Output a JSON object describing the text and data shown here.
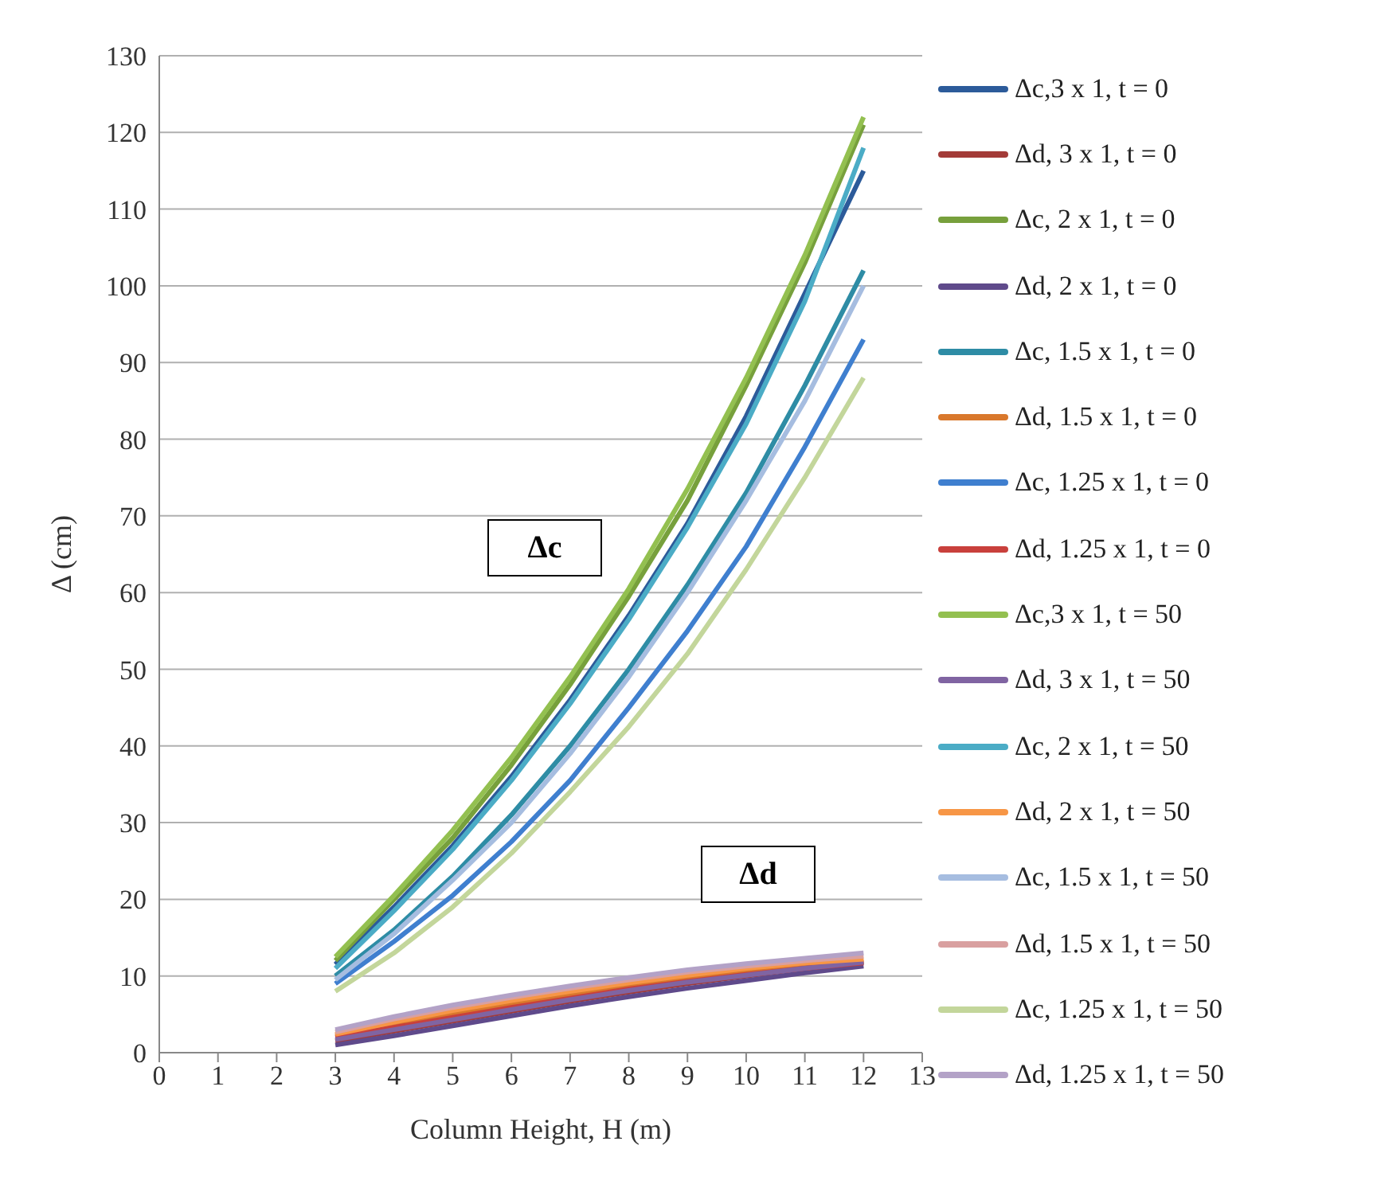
{
  "chart_data": {
    "type": "line",
    "xlabel": "Column Height, H (m)",
    "ylabel": "Δ (cm)",
    "x": [
      3,
      4,
      5,
      6,
      7,
      8,
      9,
      10,
      11,
      12
    ],
    "xlim": [
      0,
      13
    ],
    "xticks": [
      0,
      1,
      2,
      3,
      4,
      5,
      6,
      7,
      8,
      9,
      10,
      11,
      12,
      13
    ],
    "ylim": [
      0,
      130
    ],
    "yticks": [
      0,
      10,
      20,
      30,
      40,
      50,
      60,
      70,
      80,
      90,
      100,
      110,
      120,
      130
    ],
    "grid": "y",
    "legend": "right",
    "marker": "none",
    "line_style": "solid",
    "annotations": [
      "Δc",
      "Δd"
    ],
    "series": [
      {
        "name": "Δc,3 x 1, t = 0",
        "color": "#2c5b9a",
        "values": [
          11.5,
          19,
          27,
          36,
          46,
          57,
          69,
          83,
          99,
          115
        ]
      },
      {
        "name": "Δd, 3 x 1, t = 0",
        "color": "#a33b38",
        "values": [
          1.5,
          2.8,
          4.1,
          5.4,
          6.7,
          7.9,
          9,
          10,
          11,
          11.8
        ]
      },
      {
        "name": "Δc, 2 x 1, t = 0",
        "color": "#77a03c",
        "values": [
          12,
          20,
          28,
          37.5,
          48,
          59.5,
          72,
          87,
          103,
          121
        ]
      },
      {
        "name": "Δd, 2 x 1, t = 0",
        "color": "#5f4a8b",
        "values": [
          1,
          2.2,
          3.5,
          4.8,
          6.1,
          7.3,
          8.4,
          9.4,
          10.4,
          11.3
        ]
      },
      {
        "name": "Δc, 1.5 x 1, t = 0",
        "color": "#2e8ca5",
        "values": [
          10,
          16,
          23,
          31,
          40,
          50,
          61,
          73,
          87,
          102
        ]
      },
      {
        "name": "Δd, 1.5 x 1, t = 0",
        "color": "#d9782c",
        "values": [
          2.2,
          3.7,
          5.1,
          6.4,
          7.6,
          8.7,
          9.7,
          10.6,
          11.4,
          12
        ]
      },
      {
        "name": "Δc, 1.25 x 1, t = 0",
        "color": "#3f7fcf",
        "values": [
          9,
          14.5,
          20.5,
          27.5,
          35.5,
          45,
          55,
          66,
          79,
          93
        ]
      },
      {
        "name": "Δd, 1.25 x 1, t = 0",
        "color": "#c9403c",
        "values": [
          2,
          3.3,
          4.6,
          5.9,
          7.1,
          8.3,
          9.3,
          10.2,
          11,
          11.7
        ]
      },
      {
        "name": "Δc,3 x 1, t = 50",
        "color": "#93c050",
        "values": [
          12.5,
          20.5,
          29,
          38.5,
          49,
          60.5,
          73.5,
          88,
          104,
          122
        ]
      },
      {
        "name": "Δd, 3 x 1, t = 50",
        "color": "#8064a2",
        "values": [
          1.7,
          3,
          4.3,
          5.6,
          6.9,
          8.1,
          9.2,
          10.1,
          11,
          11.8
        ]
      },
      {
        "name": "Δc, 2 x 1, t = 50",
        "color": "#4bacc6",
        "values": [
          11,
          18.5,
          26.5,
          35.5,
          45.5,
          56.5,
          68.5,
          82,
          98,
          118
        ]
      },
      {
        "name": "Δd, 2 x 1, t = 50",
        "color": "#f79646",
        "values": [
          2.4,
          4,
          5.5,
          6.8,
          8,
          9.1,
          10.1,
          11,
          11.7,
          12.2
        ]
      },
      {
        "name": "Δc, 1.5 x 1, t = 50",
        "color": "#a6bde0",
        "values": [
          9.5,
          15.5,
          22.5,
          30,
          39,
          49,
          60,
          72,
          85,
          100
        ]
      },
      {
        "name": "Δd, 1.5 x 1, t = 50",
        "color": "#d9a0a0",
        "values": [
          2.7,
          4.4,
          5.9,
          7.2,
          8.4,
          9.5,
          10.5,
          11.3,
          12,
          12.6
        ]
      },
      {
        "name": "Δc, 1.25 x 1, t = 50",
        "color": "#c3d69b",
        "values": [
          8,
          13,
          19,
          26,
          34,
          42.5,
          52,
          63,
          75,
          88
        ]
      },
      {
        "name": "Δd, 1.25 x 1, t = 50",
        "color": "#b3a2c7",
        "values": [
          3,
          4.7,
          6.2,
          7.5,
          8.7,
          9.8,
          10.8,
          11.6,
          12.3,
          13
        ]
      }
    ]
  }
}
